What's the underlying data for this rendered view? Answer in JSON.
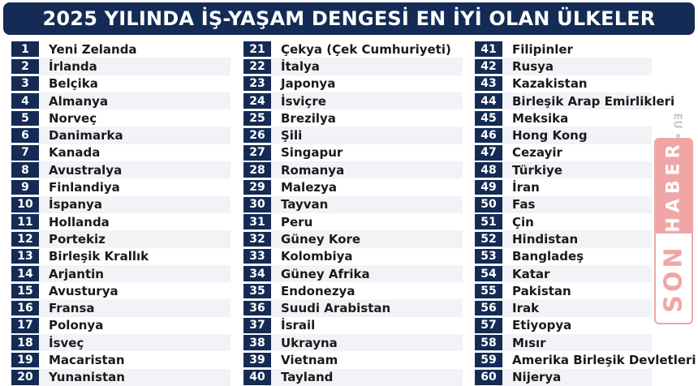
{
  "title": "2025 YILINDA İŞ-YAŞAM DENGESİ EN İYİ OLAN ÜLKELER",
  "watermark": {
    "brand_top": "SON",
    "brand_bottom": "HABER",
    "small": "EU •"
  },
  "colors": {
    "navy": "#142b55",
    "watermark": "#f0a6a6"
  },
  "columns": [
    [
      {
        "rank": "1",
        "country": "Yeni Zelanda"
      },
      {
        "rank": "2",
        "country": "İrlanda"
      },
      {
        "rank": "3",
        "country": "Belçika"
      },
      {
        "rank": "4",
        "country": "Almanya"
      },
      {
        "rank": "5",
        "country": "Norveç"
      },
      {
        "rank": "6",
        "country": "Danimarka"
      },
      {
        "rank": "7",
        "country": "Kanada"
      },
      {
        "rank": "8",
        "country": "Avustralya"
      },
      {
        "rank": "9",
        "country": "Finlandiya"
      },
      {
        "rank": "10",
        "country": "İspanya"
      },
      {
        "rank": "11",
        "country": "Hollanda"
      },
      {
        "rank": "12",
        "country": "Portekiz"
      },
      {
        "rank": "13",
        "country": "Birleşik Krallık"
      },
      {
        "rank": "14",
        "country": "Arjantin"
      },
      {
        "rank": "15",
        "country": "Avusturya"
      },
      {
        "rank": "16",
        "country": "Fransa"
      },
      {
        "rank": "17",
        "country": "Polonya"
      },
      {
        "rank": "18",
        "country": "İsveç"
      },
      {
        "rank": "19",
        "country": "Macaristan"
      },
      {
        "rank": "20",
        "country": "Yunanistan"
      }
    ],
    [
      {
        "rank": "21",
        "country": "Çekya (Çek Cumhuriyeti)"
      },
      {
        "rank": "22",
        "country": "İtalya"
      },
      {
        "rank": "23",
        "country": "Japonya"
      },
      {
        "rank": "24",
        "country": "İsviçre"
      },
      {
        "rank": "25",
        "country": "Brezilya"
      },
      {
        "rank": "26",
        "country": "Şili"
      },
      {
        "rank": "27",
        "country": "Singapur"
      },
      {
        "rank": "28",
        "country": "Romanya"
      },
      {
        "rank": "29",
        "country": "Malezya"
      },
      {
        "rank": "30",
        "country": "Tayvan"
      },
      {
        "rank": "31",
        "country": "Peru"
      },
      {
        "rank": "32",
        "country": "Güney Kore"
      },
      {
        "rank": "33",
        "country": "Kolombiya"
      },
      {
        "rank": "34",
        "country": "Güney Afrika"
      },
      {
        "rank": "35",
        "country": "Endonezya"
      },
      {
        "rank": "36",
        "country": "Suudi Arabistan"
      },
      {
        "rank": "37",
        "country": "İsrail"
      },
      {
        "rank": "38",
        "country": "Ukrayna"
      },
      {
        "rank": "39",
        "country": "Vietnam"
      },
      {
        "rank": "40",
        "country": "Tayland"
      }
    ],
    [
      {
        "rank": "41",
        "country": "Filipinler"
      },
      {
        "rank": "42",
        "country": "Rusya"
      },
      {
        "rank": "43",
        "country": "Kazakistan"
      },
      {
        "rank": "44",
        "country": "Birleşik Arap Emirlikleri"
      },
      {
        "rank": "45",
        "country": "Meksika"
      },
      {
        "rank": "46",
        "country": "Hong Kong"
      },
      {
        "rank": "47",
        "country": "Cezayir"
      },
      {
        "rank": "48",
        "country": "Türkiye"
      },
      {
        "rank": "49",
        "country": "İran"
      },
      {
        "rank": "50",
        "country": "Fas"
      },
      {
        "rank": "51",
        "country": "Çin"
      },
      {
        "rank": "52",
        "country": "Hindistan"
      },
      {
        "rank": "53",
        "country": "Bangladeş"
      },
      {
        "rank": "54",
        "country": "Katar"
      },
      {
        "rank": "55",
        "country": "Pakistan"
      },
      {
        "rank": "56",
        "country": "Irak"
      },
      {
        "rank": "57",
        "country": "Etiyopya"
      },
      {
        "rank": "58",
        "country": "Mısır"
      },
      {
        "rank": "59",
        "country": "Amerika Birleşik Devletleri"
      },
      {
        "rank": "60",
        "country": "Nijerya"
      }
    ]
  ]
}
